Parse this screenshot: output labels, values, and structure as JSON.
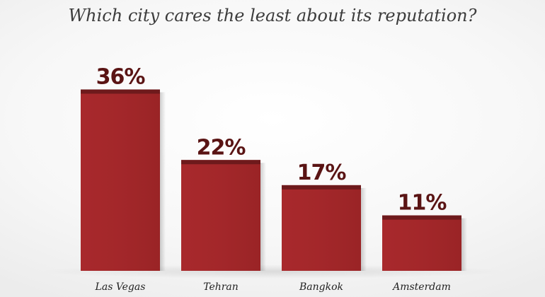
{
  "chart_data": {
    "type": "bar",
    "title": "Which city cares the least about its reputation?",
    "categories": [
      "Las Vegas",
      "Tehran",
      "Bangkok",
      "Amsterdam"
    ],
    "values": [
      36,
      22,
      17,
      11
    ],
    "value_labels": [
      "36%",
      "22%",
      "17%",
      "11%"
    ],
    "ylim": [
      0,
      40
    ],
    "grid": false,
    "legend": "none",
    "colors": {
      "bar": "#a3282b",
      "bar_cap": "#6e1a1c",
      "label": "#5a1414"
    }
  }
}
